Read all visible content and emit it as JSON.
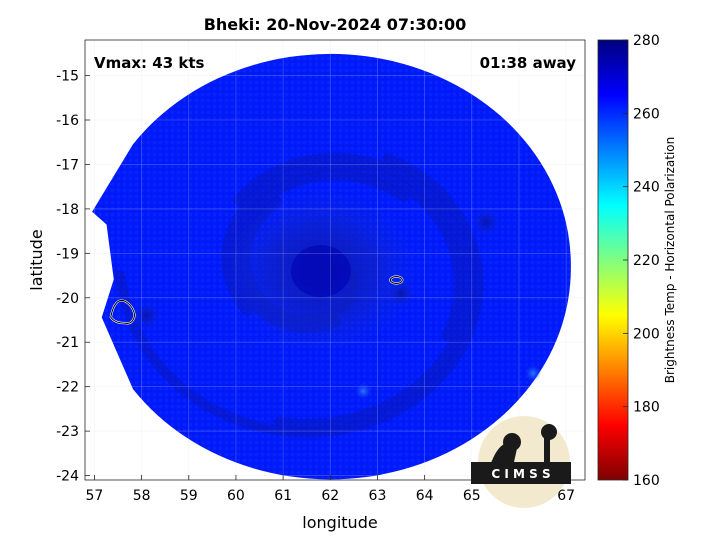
{
  "chart_data": {
    "type": "heatmap",
    "title": "Bheki: 20-Nov-2024 07:30:00",
    "xlabel": "longitude",
    "ylabel": "latitude",
    "xlim": [
      56.8,
      67.4
    ],
    "ylim": [
      -24.1,
      -14.2
    ],
    "xticks": [
      57,
      58,
      59,
      60,
      61,
      62,
      63,
      64,
      65,
      66,
      67
    ],
    "yticks": [
      -15,
      -16,
      -17,
      -18,
      -19,
      -20,
      -21,
      -22,
      -23,
      -24
    ],
    "grid": true,
    "annotations": {
      "vmax": "Vmax: 43 kts",
      "time_away": "01:38 away"
    },
    "colorbar": {
      "label": "Brightness Temp - Horizontal Polarization",
      "range": [
        160,
        280
      ],
      "ticks": [
        280,
        260,
        240,
        220,
        200,
        180,
        160
      ],
      "colormap": [
        "#7f0000",
        "#ff0000",
        "#ff8000",
        "#ffff00",
        "#80ff80",
        "#00ffff",
        "#0080ff",
        "#0000ff",
        "#00007f"
      ]
    },
    "swath": {
      "center_lon": 62.0,
      "center_lat": -19.3,
      "lon_radius": 5.1,
      "lat_radius": 4.75,
      "background_temp": 262,
      "outer_band_temp": 263,
      "eye_lon": 61.8,
      "eye_lat": -19.4,
      "eye_temp": 274,
      "cold_spots": [
        {
          "lon": 58.1,
          "lat": -20.4,
          "temp": 272
        },
        {
          "lon": 63.5,
          "lat": -19.9,
          "temp": 270
        },
        {
          "lon": 65.3,
          "lat": -18.3,
          "temp": 266
        }
      ],
      "warm_spots": [
        {
          "lon": 66.3,
          "lat": -21.7,
          "temp": 248
        },
        {
          "lon": 62.7,
          "lat": -22.1,
          "temp": 250
        }
      ]
    },
    "contours": [
      {
        "lon": 57.6,
        "lat": -20.3
      },
      {
        "lon": 63.4,
        "lat": -19.6
      }
    ]
  },
  "logo": {
    "text": "CIMSS"
  },
  "colors": {
    "axis": "#262626",
    "grid": "#dfdfdf",
    "text": "#000000"
  }
}
